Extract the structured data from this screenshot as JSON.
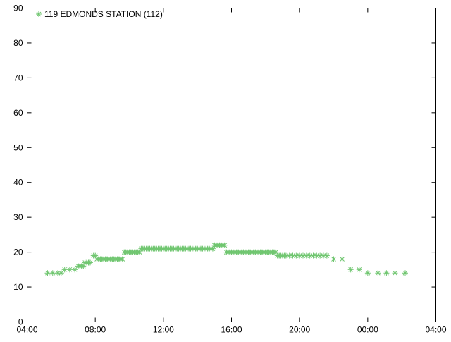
{
  "chart_data": {
    "type": "scatter",
    "title": "",
    "xlabel": "",
    "ylabel": "",
    "xlim": [
      "04:00",
      "04:00"
    ],
    "ylim": [
      0,
      90
    ],
    "x_ticks": [
      "04:00",
      "08:00",
      "12:00",
      "16:00",
      "20:00",
      "00:00",
      "04:00"
    ],
    "y_ticks": [
      "0",
      "10",
      "20",
      "30",
      "40",
      "50",
      "60",
      "70",
      "80",
      "90"
    ],
    "grid": false,
    "legend_placement": "top-left",
    "marker": "asterisk",
    "series": [
      {
        "name": "119 EDMONDS STATION (112)",
        "color": "#70c670",
        "points": [
          [
            "05:12",
            14
          ],
          [
            "05:30",
            14
          ],
          [
            "05:48",
            14
          ],
          [
            "06:00",
            14
          ],
          [
            "06:12",
            15
          ],
          [
            "06:30",
            15
          ],
          [
            "06:48",
            15
          ],
          [
            "07:00",
            16
          ],
          [
            "07:06",
            16
          ],
          [
            "07:12",
            16
          ],
          [
            "07:18",
            16
          ],
          [
            "07:24",
            17
          ],
          [
            "07:30",
            17
          ],
          [
            "07:36",
            17
          ],
          [
            "07:42",
            17
          ],
          [
            "07:54",
            19
          ],
          [
            "08:00",
            19
          ],
          [
            "08:06",
            18
          ],
          [
            "08:12",
            18
          ],
          [
            "08:18",
            18
          ],
          [
            "08:24",
            18
          ],
          [
            "08:30",
            18
          ],
          [
            "08:36",
            18
          ],
          [
            "08:42",
            18
          ],
          [
            "08:48",
            18
          ],
          [
            "08:54",
            18
          ],
          [
            "09:00",
            18
          ],
          [
            "09:06",
            18
          ],
          [
            "09:12",
            18
          ],
          [
            "09:18",
            18
          ],
          [
            "09:24",
            18
          ],
          [
            "09:30",
            18
          ],
          [
            "09:36",
            18
          ],
          [
            "09:42",
            20
          ],
          [
            "09:48",
            20
          ],
          [
            "09:54",
            20
          ],
          [
            "10:00",
            20
          ],
          [
            "10:06",
            20
          ],
          [
            "10:12",
            20
          ],
          [
            "10:18",
            20
          ],
          [
            "10:24",
            20
          ],
          [
            "10:30",
            20
          ],
          [
            "10:36",
            20
          ],
          [
            "10:42",
            21
          ],
          [
            "10:48",
            21
          ],
          [
            "10:54",
            21
          ],
          [
            "11:00",
            21
          ],
          [
            "11:06",
            21
          ],
          [
            "11:12",
            21
          ],
          [
            "11:18",
            21
          ],
          [
            "11:24",
            21
          ],
          [
            "11:30",
            21
          ],
          [
            "11:36",
            21
          ],
          [
            "11:42",
            21
          ],
          [
            "11:48",
            21
          ],
          [
            "11:54",
            21
          ],
          [
            "12:00",
            21
          ],
          [
            "12:06",
            21
          ],
          [
            "12:12",
            21
          ],
          [
            "12:18",
            21
          ],
          [
            "12:24",
            21
          ],
          [
            "12:30",
            21
          ],
          [
            "12:36",
            21
          ],
          [
            "12:42",
            21
          ],
          [
            "12:48",
            21
          ],
          [
            "12:54",
            21
          ],
          [
            "13:00",
            21
          ],
          [
            "13:06",
            21
          ],
          [
            "13:12",
            21
          ],
          [
            "13:18",
            21
          ],
          [
            "13:24",
            21
          ],
          [
            "13:30",
            21
          ],
          [
            "13:36",
            21
          ],
          [
            "13:42",
            21
          ],
          [
            "13:48",
            21
          ],
          [
            "13:54",
            21
          ],
          [
            "14:00",
            21
          ],
          [
            "14:06",
            21
          ],
          [
            "14:12",
            21
          ],
          [
            "14:18",
            21
          ],
          [
            "14:24",
            21
          ],
          [
            "14:30",
            21
          ],
          [
            "14:36",
            21
          ],
          [
            "14:42",
            21
          ],
          [
            "14:48",
            21
          ],
          [
            "14:54",
            21
          ],
          [
            "15:00",
            22
          ],
          [
            "15:06",
            22
          ],
          [
            "15:12",
            22
          ],
          [
            "15:18",
            22
          ],
          [
            "15:24",
            22
          ],
          [
            "15:30",
            22
          ],
          [
            "15:36",
            22
          ],
          [
            "15:42",
            20
          ],
          [
            "15:48",
            20
          ],
          [
            "15:54",
            20
          ],
          [
            "16:00",
            20
          ],
          [
            "16:06",
            20
          ],
          [
            "16:12",
            20
          ],
          [
            "16:18",
            20
          ],
          [
            "16:24",
            20
          ],
          [
            "16:30",
            20
          ],
          [
            "16:36",
            20
          ],
          [
            "16:42",
            20
          ],
          [
            "16:48",
            20
          ],
          [
            "16:54",
            20
          ],
          [
            "17:00",
            20
          ],
          [
            "17:06",
            20
          ],
          [
            "17:12",
            20
          ],
          [
            "17:18",
            20
          ],
          [
            "17:24",
            20
          ],
          [
            "17:30",
            20
          ],
          [
            "17:36",
            20
          ],
          [
            "17:42",
            20
          ],
          [
            "17:48",
            20
          ],
          [
            "17:54",
            20
          ],
          [
            "18:00",
            20
          ],
          [
            "18:06",
            20
          ],
          [
            "18:12",
            20
          ],
          [
            "18:18",
            20
          ],
          [
            "18:24",
            20
          ],
          [
            "18:30",
            20
          ],
          [
            "18:36",
            20
          ],
          [
            "18:42",
            19
          ],
          [
            "18:48",
            19
          ],
          [
            "18:54",
            19
          ],
          [
            "19:00",
            19
          ],
          [
            "19:06",
            19
          ],
          [
            "19:12",
            19
          ],
          [
            "19:24",
            19
          ],
          [
            "19:36",
            19
          ],
          [
            "19:48",
            19
          ],
          [
            "20:00",
            19
          ],
          [
            "20:12",
            19
          ],
          [
            "20:24",
            19
          ],
          [
            "20:36",
            19
          ],
          [
            "20:48",
            19
          ],
          [
            "21:00",
            19
          ],
          [
            "21:12",
            19
          ],
          [
            "21:24",
            19
          ],
          [
            "21:36",
            19
          ],
          [
            "22:00",
            18
          ],
          [
            "22:30",
            18
          ],
          [
            "23:00",
            15
          ],
          [
            "23:30",
            15
          ],
          [
            "00:00",
            14
          ],
          [
            "00:36",
            14
          ],
          [
            "01:06",
            14
          ],
          [
            "01:36",
            14
          ],
          [
            "02:12",
            14
          ]
        ]
      }
    ]
  }
}
